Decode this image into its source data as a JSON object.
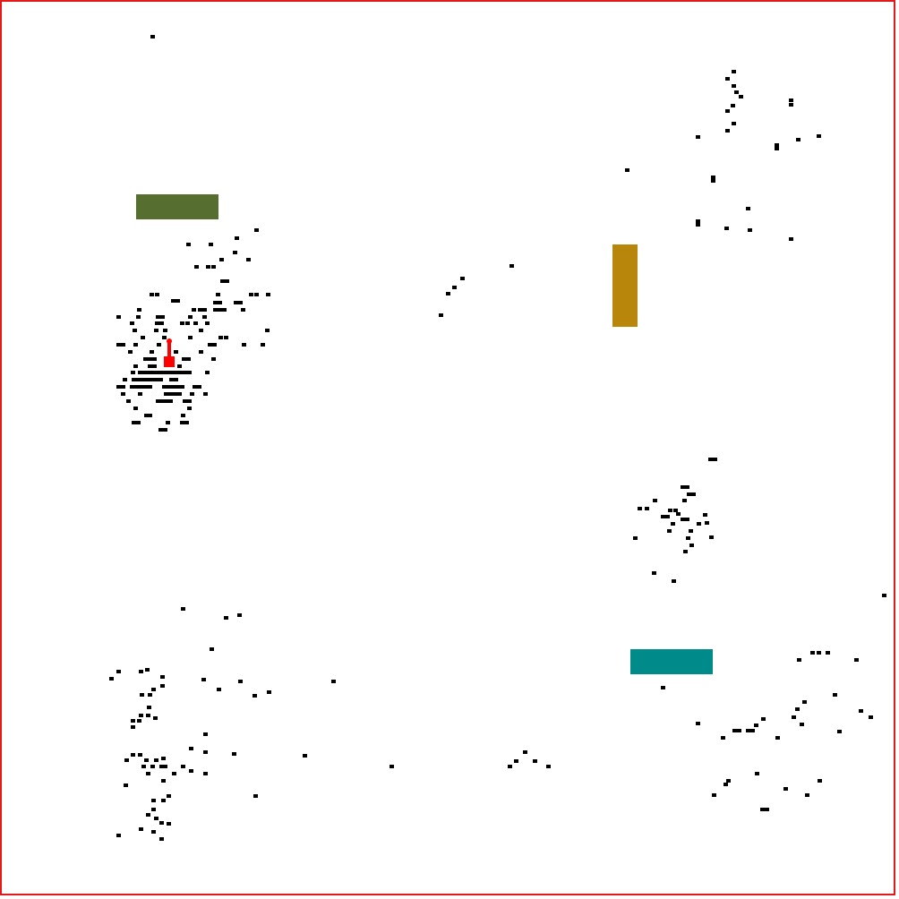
{
  "colors": {
    "border": "#e21a1a",
    "background": "#ffffff",
    "debris": "#000000",
    "player": "#ff0000"
  },
  "obstacles": [
    {
      "name": "olive-block",
      "color": "#566e30"
    },
    {
      "name": "gold-block",
      "color": "#b8860b"
    },
    {
      "name": "teal-block",
      "color": "#008b8b"
    }
  ],
  "player": {
    "icon": "tank-icon",
    "heading": "up"
  }
}
